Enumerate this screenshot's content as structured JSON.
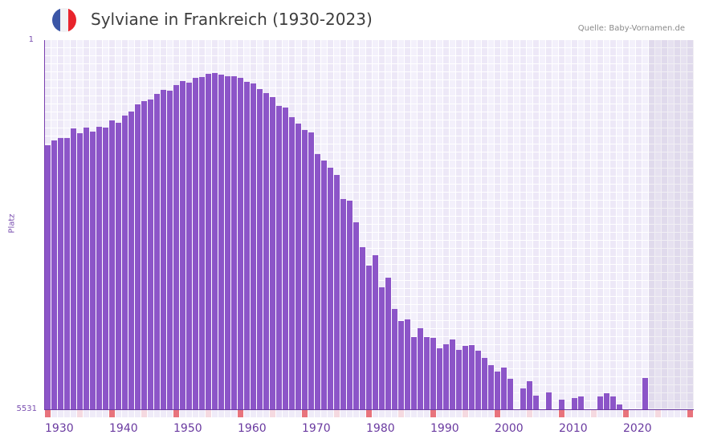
{
  "header": {
    "title": "Sylviane in Frankreich (1930-2023)",
    "source": "Quelle: Baby-Vornamen.de",
    "flag_icon": "france-flag-icon",
    "flag_colors": [
      "#3b56a6",
      "#f1f1f4",
      "#e8242c"
    ]
  },
  "axes": {
    "y_top_label": "1",
    "y_bottom_label": "5531",
    "y_title": "Platz"
  },
  "colors": {
    "bar": "#8c55c8",
    "axis": "#6a3aa0",
    "grid_a": "#ede8f7",
    "grid_b": "#f3f0fb",
    "marker_decade": "#e8737c",
    "marker_half": "#f5d9e0",
    "marker_other": "#efebf8"
  },
  "chart_data": {
    "type": "bar",
    "title": "Sylviane in Frankreich (1930-2023)",
    "xlabel": "",
    "ylabel": "Platz",
    "y_inverted": true,
    "ylim": [
      1,
      5531
    ],
    "x_range": [
      1930,
      2030
    ],
    "x_tick_labels": [
      "1930",
      "1940",
      "1950",
      "1960",
      "1970",
      "1980",
      "1990",
      "2000",
      "2010",
      "2020"
    ],
    "shaded_future_from": 2024,
    "grid": true,
    "legend": null,
    "categories": [
      1930,
      1931,
      1932,
      1933,
      1934,
      1935,
      1936,
      1937,
      1938,
      1939,
      1940,
      1941,
      1942,
      1943,
      1944,
      1945,
      1946,
      1947,
      1948,
      1949,
      1950,
      1951,
      1952,
      1953,
      1954,
      1955,
      1956,
      1957,
      1958,
      1959,
      1960,
      1961,
      1962,
      1963,
      1964,
      1965,
      1966,
      1967,
      1968,
      1969,
      1970,
      1971,
      1972,
      1973,
      1974,
      1975,
      1976,
      1977,
      1978,
      1979,
      1980,
      1981,
      1982,
      1983,
      1984,
      1985,
      1986,
      1987,
      1988,
      1989,
      1990,
      1991,
      1992,
      1993,
      1994,
      1995,
      1996,
      1997,
      1998,
      1999,
      2000,
      2001,
      2002,
      2003,
      2004,
      2005,
      2006,
      2007,
      2008,
      2009,
      2010,
      2011,
      2012,
      2013,
      2014,
      2015,
      2016,
      2017,
      2018,
      2019,
      2020,
      2021,
      2022,
      2023
    ],
    "values": [
      1572,
      1504,
      1464,
      1464,
      1323,
      1396,
      1311,
      1371,
      1299,
      1311,
      1203,
      1239,
      1131,
      1071,
      963,
      915,
      891,
      806,
      746,
      758,
      674,
      614,
      638,
      566,
      554,
      506,
      494,
      518,
      542,
      542,
      566,
      626,
      650,
      734,
      794,
      855,
      987,
      1011,
      1155,
      1251,
      1347,
      1383,
      1708,
      1804,
      1912,
      2021,
      2381,
      2405,
      2730,
      3103,
      3379,
      3223,
      3704,
      3559,
      4028,
      4209,
      4185,
      4449,
      4317,
      4449,
      4461,
      4617,
      4557,
      4485,
      4641,
      4581,
      4569,
      4653,
      4762,
      4870,
      4966,
      4906,
      5074,
      null,
      5218,
      5110,
      5327,
      null,
      5279,
      null,
      5387,
      null,
      5363,
      5339,
      null,
      null,
      5339,
      5291,
      5339,
      5459,
      null,
      null,
      null,
      5062
    ]
  }
}
